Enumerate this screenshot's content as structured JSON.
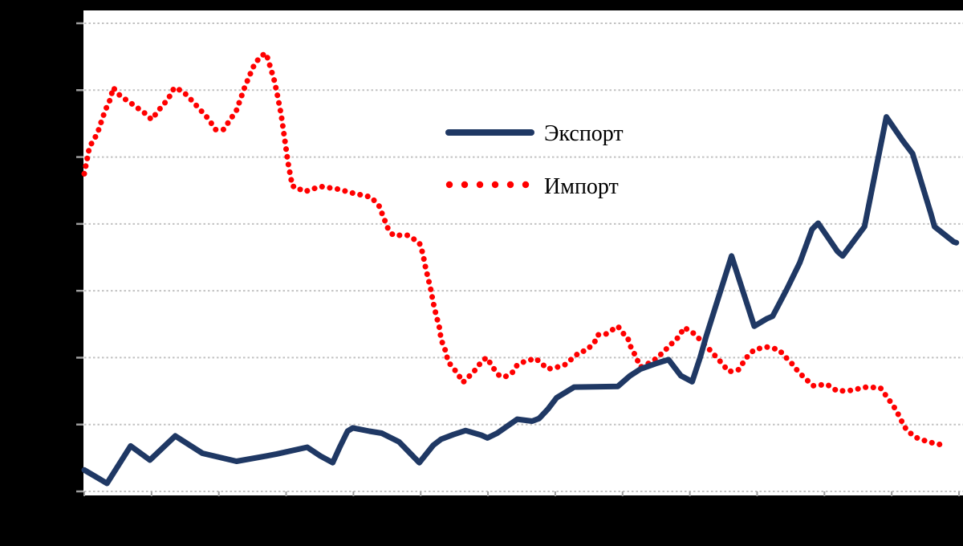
{
  "canvas": {
    "background_color": "#000000",
    "plot_background_color": "#ffffff"
  },
  "legend": {
    "export_label": "Экспорт",
    "import_label": "Импорт"
  },
  "chart_data": {
    "type": "line",
    "title": "",
    "xlabel": "",
    "ylabel": "",
    "x_axis": {
      "labels_visible": false,
      "tick_count": 14,
      "x_unit": "axis_fraction_0_to_1"
    },
    "y_axis": {
      "labels_visible": false,
      "min": 0,
      "max": 70,
      "gridline_step": 10,
      "grid": "dashed"
    },
    "legend_position": "upper-middle-inside",
    "colors": {
      "export": "#1f3864",
      "import": "#ff0000",
      "gridline": "#c2c2c2",
      "tick": "#9e9e9e"
    },
    "series": [
      {
        "name": "Экспорт",
        "style": "solid",
        "color": "#1f3864",
        "points": [
          [
            0.0,
            3.2
          ],
          [
            0.026,
            1.2
          ],
          [
            0.053,
            6.8
          ],
          [
            0.075,
            4.7
          ],
          [
            0.104,
            8.3
          ],
          [
            0.135,
            5.7
          ],
          [
            0.174,
            4.5
          ],
          [
            0.208,
            5.3
          ],
          [
            0.22,
            5.6
          ],
          [
            0.255,
            6.6
          ],
          [
            0.27,
            5.3
          ],
          [
            0.284,
            4.3
          ],
          [
            0.292,
            6.6
          ],
          [
            0.301,
            9.0
          ],
          [
            0.307,
            9.5
          ],
          [
            0.326,
            9.0
          ],
          [
            0.34,
            8.7
          ],
          [
            0.36,
            7.4
          ],
          [
            0.383,
            4.3
          ],
          [
            0.399,
            6.9
          ],
          [
            0.408,
            7.8
          ],
          [
            0.422,
            8.5
          ],
          [
            0.436,
            9.1
          ],
          [
            0.454,
            8.4
          ],
          [
            0.461,
            8.0
          ],
          [
            0.472,
            8.7
          ],
          [
            0.484,
            9.8
          ],
          [
            0.495,
            10.8
          ],
          [
            0.512,
            10.5
          ],
          [
            0.52,
            10.9
          ],
          [
            0.53,
            12.3
          ],
          [
            0.54,
            14.0
          ],
          [
            0.56,
            15.6
          ],
          [
            0.61,
            15.7
          ],
          [
            0.624,
            17.3
          ],
          [
            0.636,
            18.3
          ],
          [
            0.653,
            19.1
          ],
          [
            0.668,
            19.7
          ],
          [
            0.682,
            17.3
          ],
          [
            0.695,
            16.4
          ],
          [
            0.704,
            20.0
          ],
          [
            0.711,
            23.2
          ],
          [
            0.74,
            35.2
          ],
          [
            0.766,
            24.7
          ],
          [
            0.78,
            25.8
          ],
          [
            0.787,
            26.2
          ],
          [
            0.803,
            30.2
          ],
          [
            0.818,
            34.2
          ],
          [
            0.832,
            39.2
          ],
          [
            0.839,
            40.1
          ],
          [
            0.849,
            38.2
          ],
          [
            0.861,
            35.9
          ],
          [
            0.867,
            35.2
          ],
          [
            0.892,
            39.6
          ],
          [
            0.917,
            56.0
          ],
          [
            0.936,
            52.4
          ],
          [
            0.947,
            50.5
          ],
          [
            0.968,
            41.5
          ],
          [
            0.972,
            39.6
          ],
          [
            0.994,
            37.3
          ],
          [
            0.997,
            37.2
          ]
        ]
      },
      {
        "name": "Импорт",
        "style": "dotted",
        "color": "#ff0000",
        "points": [
          [
            0.0,
            47.5
          ],
          [
            0.006,
            51.5
          ],
          [
            0.015,
            53.5
          ],
          [
            0.02,
            55.5
          ],
          [
            0.024,
            57.0
          ],
          [
            0.03,
            58.7
          ],
          [
            0.033,
            60.4
          ],
          [
            0.042,
            59.0
          ],
          [
            0.05,
            58.4
          ],
          [
            0.058,
            57.6
          ],
          [
            0.068,
            56.7
          ],
          [
            0.077,
            55.6
          ],
          [
            0.085,
            57.0
          ],
          [
            0.096,
            58.7
          ],
          [
            0.103,
            60.4
          ],
          [
            0.113,
            59.8
          ],
          [
            0.124,
            58.3
          ],
          [
            0.133,
            57.0
          ],
          [
            0.142,
            55.7
          ],
          [
            0.15,
            54.1
          ],
          [
            0.159,
            54.1
          ],
          [
            0.167,
            55.6
          ],
          [
            0.174,
            57.0
          ],
          [
            0.183,
            60.3
          ],
          [
            0.189,
            62.2
          ],
          [
            0.195,
            64.0
          ],
          [
            0.203,
            65.2
          ],
          [
            0.208,
            65.5
          ],
          [
            0.217,
            61.6
          ],
          [
            0.22,
            59.8
          ],
          [
            0.225,
            56.4
          ],
          [
            0.229,
            52.8
          ],
          [
            0.233,
            49.1
          ],
          [
            0.238,
            45.6
          ],
          [
            0.243,
            45.6
          ],
          [
            0.249,
            44.9
          ],
          [
            0.254,
            44.9
          ],
          [
            0.27,
            45.6
          ],
          [
            0.29,
            45.2
          ],
          [
            0.307,
            44.6
          ],
          [
            0.328,
            44.0
          ],
          [
            0.337,
            42.7
          ],
          [
            0.347,
            39.4
          ],
          [
            0.353,
            38.3
          ],
          [
            0.37,
            38.3
          ],
          [
            0.383,
            37.2
          ],
          [
            0.387,
            35.6
          ],
          [
            0.39,
            33.6
          ],
          [
            0.393,
            31.9
          ],
          [
            0.396,
            30.3
          ],
          [
            0.399,
            28.2
          ],
          [
            0.402,
            26.5
          ],
          [
            0.406,
            24.5
          ],
          [
            0.408,
            22.7
          ],
          [
            0.413,
            21.0
          ],
          [
            0.416,
            19.4
          ],
          [
            0.427,
            17.6
          ],
          [
            0.433,
            16.3
          ],
          [
            0.44,
            17.2
          ],
          [
            0.448,
            18.3
          ],
          [
            0.454,
            19.4
          ],
          [
            0.46,
            20.0
          ],
          [
            0.468,
            18.4
          ],
          [
            0.475,
            17.2
          ],
          [
            0.482,
            17.2
          ],
          [
            0.489,
            17.7
          ],
          [
            0.495,
            18.9
          ],
          [
            0.503,
            19.4
          ],
          [
            0.516,
            19.9
          ],
          [
            0.53,
            18.3
          ],
          [
            0.541,
            18.6
          ],
          [
            0.549,
            18.9
          ],
          [
            0.56,
            20.1
          ],
          [
            0.567,
            20.9
          ],
          [
            0.573,
            21.0
          ],
          [
            0.583,
            22.2
          ],
          [
            0.587,
            23.4
          ],
          [
            0.596,
            23.5
          ],
          [
            0.603,
            24.1
          ],
          [
            0.61,
            24.7
          ],
          [
            0.617,
            23.5
          ],
          [
            0.621,
            23.1
          ],
          [
            0.624,
            21.8
          ],
          [
            0.63,
            20.3
          ],
          [
            0.636,
            18.6
          ],
          [
            0.642,
            18.9
          ],
          [
            0.653,
            19.8
          ],
          [
            0.656,
            20.0
          ],
          [
            0.663,
            21.1
          ],
          [
            0.668,
            21.5
          ],
          [
            0.674,
            22.5
          ],
          [
            0.679,
            23.0
          ],
          [
            0.686,
            24.5
          ],
          [
            0.697,
            23.6
          ],
          [
            0.707,
            22.3
          ],
          [
            0.717,
            20.9
          ],
          [
            0.728,
            19.3
          ],
          [
            0.737,
            17.9
          ],
          [
            0.748,
            18.2
          ],
          [
            0.757,
            20.0
          ],
          [
            0.766,
            21.2
          ],
          [
            0.78,
            21.6
          ],
          [
            0.794,
            21.2
          ],
          [
            0.801,
            20.2
          ],
          [
            0.809,
            19.1
          ],
          [
            0.817,
            17.8
          ],
          [
            0.833,
            15.8
          ],
          [
            0.849,
            16.0
          ],
          [
            0.861,
            15.0
          ],
          [
            0.876,
            15.1
          ],
          [
            0.894,
            15.6
          ],
          [
            0.91,
            15.5
          ],
          [
            0.92,
            13.7
          ],
          [
            0.928,
            12.2
          ],
          [
            0.934,
            10.6
          ],
          [
            0.94,
            9.2
          ],
          [
            0.95,
            8.1
          ],
          [
            0.965,
            7.4
          ],
          [
            0.982,
            6.9
          ],
          [
            0.986,
            6.8
          ]
        ]
      }
    ]
  }
}
